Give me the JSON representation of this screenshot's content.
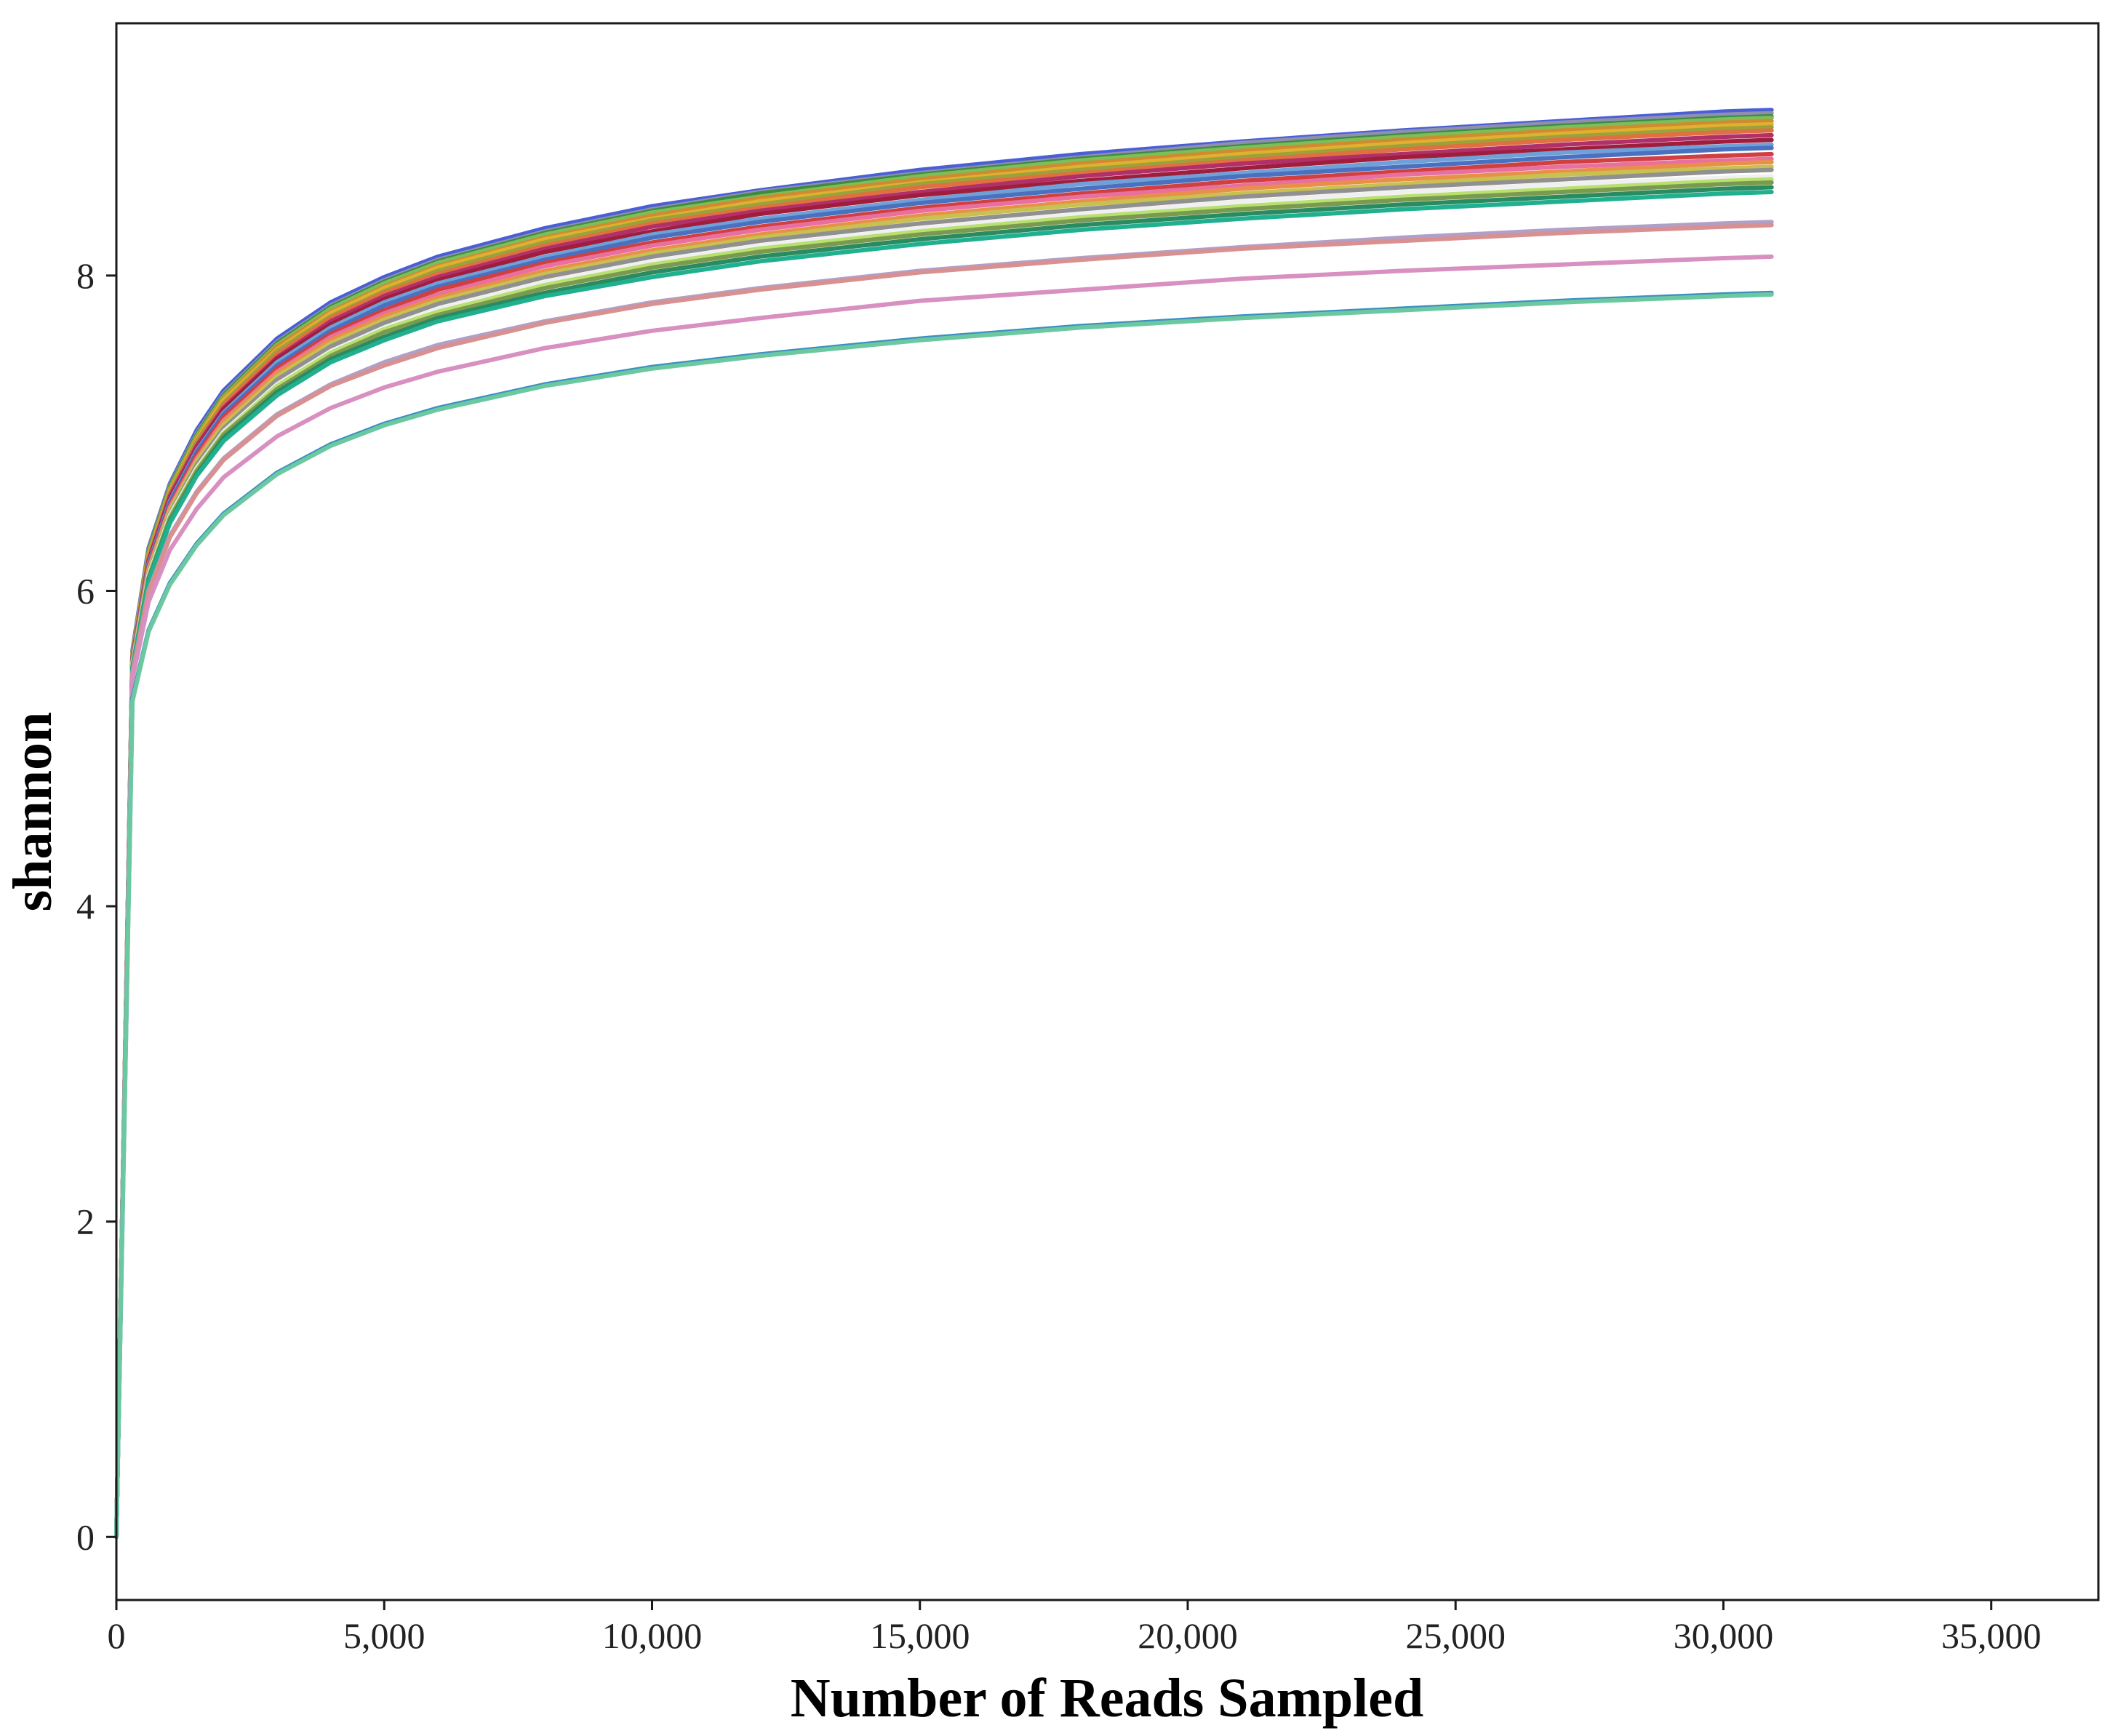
{
  "chart_data": {
    "type": "line",
    "title": "",
    "xlabel": "Number of Reads Sampled",
    "ylabel": "shannon",
    "xlim": [
      0,
      37000
    ],
    "ylim": [
      -0.4,
      9.6
    ],
    "x_ticks": [
      0,
      5000,
      10000,
      15000,
      20000,
      25000,
      30000,
      35000
    ],
    "x_tick_labels": [
      "0",
      "5,000",
      "10,000",
      "15,000",
      "20,000",
      "25,000",
      "30,000",
      "35,000"
    ],
    "y_ticks": [
      0,
      2,
      4,
      6,
      8
    ],
    "y_tick_labels": [
      "0",
      "2",
      "4",
      "6",
      "8"
    ],
    "grid": false,
    "legend": "none",
    "x": [
      0,
      300,
      600,
      1000,
      1500,
      2000,
      3000,
      4000,
      5000,
      6000,
      8000,
      10000,
      12000,
      15000,
      18000,
      21000,
      24000,
      27000,
      30000,
      30900
    ],
    "series": [
      {
        "color": "#4a5fd6",
        "values": [
          0,
          5.62,
          6.27,
          6.68,
          7.02,
          7.27,
          7.6,
          7.83,
          7.99,
          8.12,
          8.3,
          8.44,
          8.54,
          8.67,
          8.77,
          8.85,
          8.92,
          8.98,
          9.04,
          9.05
        ]
      },
      {
        "color": "#8f8fb0",
        "values": [
          0,
          5.61,
          6.26,
          6.67,
          7.0,
          7.25,
          7.58,
          7.81,
          7.97,
          8.1,
          8.28,
          8.42,
          8.53,
          8.65,
          8.75,
          8.84,
          8.91,
          8.97,
          9.02,
          9.03
        ]
      },
      {
        "color": "#3c8c3c",
        "values": [
          0,
          5.6,
          6.25,
          6.66,
          6.99,
          7.24,
          7.57,
          7.8,
          7.96,
          8.09,
          8.27,
          8.41,
          8.52,
          8.64,
          8.74,
          8.82,
          8.89,
          8.95,
          9.0,
          9.01
        ]
      },
      {
        "color": "#7dbd5a",
        "values": [
          0,
          5.6,
          6.24,
          6.65,
          6.98,
          7.23,
          7.56,
          7.79,
          7.95,
          8.08,
          8.26,
          8.4,
          8.5,
          8.63,
          8.73,
          8.81,
          8.88,
          8.94,
          8.99,
          9.0
        ]
      },
      {
        "color": "#d08a30",
        "values": [
          0,
          5.59,
          6.23,
          6.64,
          6.97,
          7.22,
          7.55,
          7.77,
          7.93,
          8.06,
          8.24,
          8.38,
          8.49,
          8.61,
          8.71,
          8.79,
          8.86,
          8.92,
          8.97,
          8.98
        ]
      },
      {
        "color": "#e0b030",
        "values": [
          0,
          5.59,
          6.22,
          6.63,
          6.96,
          7.21,
          7.53,
          7.76,
          7.92,
          8.05,
          8.23,
          8.36,
          8.47,
          8.59,
          8.69,
          8.77,
          8.84,
          8.9,
          8.95,
          8.96
        ]
      },
      {
        "color": "#9aa23c",
        "values": [
          0,
          5.58,
          6.21,
          6.62,
          6.95,
          7.19,
          7.52,
          7.74,
          7.9,
          8.03,
          8.21,
          8.35,
          8.45,
          8.58,
          8.67,
          8.75,
          8.82,
          8.88,
          8.93,
          8.94
        ]
      },
      {
        "color": "#e07040",
        "values": [
          0,
          5.58,
          6.2,
          6.61,
          6.93,
          7.18,
          7.5,
          7.73,
          7.89,
          8.01,
          8.19,
          8.33,
          8.43,
          8.56,
          8.65,
          8.73,
          8.8,
          8.86,
          8.91,
          8.92
        ]
      },
      {
        "color": "#b0306a",
        "values": [
          0,
          5.57,
          6.19,
          6.6,
          6.92,
          7.16,
          7.48,
          7.71,
          7.87,
          7.99,
          8.17,
          8.31,
          8.41,
          8.53,
          8.63,
          8.71,
          8.77,
          8.83,
          8.88,
          8.89
        ]
      },
      {
        "color": "#a01e3c",
        "values": [
          0,
          5.57,
          6.18,
          6.58,
          6.9,
          7.15,
          7.47,
          7.69,
          7.85,
          7.97,
          8.15,
          8.28,
          8.39,
          8.51,
          8.6,
          8.68,
          8.75,
          8.8,
          8.85,
          8.86
        ]
      },
      {
        "color": "#6fa0d8",
        "values": [
          0,
          5.56,
          6.17,
          6.57,
          6.89,
          7.13,
          7.45,
          7.67,
          7.83,
          7.95,
          8.12,
          8.26,
          8.36,
          8.48,
          8.58,
          8.65,
          8.72,
          8.78,
          8.82,
          8.83
        ]
      },
      {
        "color": "#4a70c0",
        "values": [
          0,
          5.56,
          6.16,
          6.56,
          6.88,
          7.12,
          7.43,
          7.65,
          7.81,
          7.93,
          8.1,
          8.24,
          8.34,
          8.46,
          8.55,
          8.63,
          8.69,
          8.75,
          8.8,
          8.81
        ]
      },
      {
        "color": "#d04040",
        "values": [
          0,
          5.55,
          6.15,
          6.54,
          6.86,
          7.1,
          7.41,
          7.63,
          7.78,
          7.91,
          8.08,
          8.21,
          8.31,
          8.43,
          8.52,
          8.6,
          8.66,
          8.72,
          8.76,
          8.77
        ]
      },
      {
        "color": "#e870a0",
        "values": [
          0,
          5.55,
          6.14,
          6.53,
          6.84,
          7.08,
          7.39,
          7.61,
          7.76,
          7.88,
          8.06,
          8.19,
          8.29,
          8.41,
          8.5,
          8.57,
          8.64,
          8.69,
          8.73,
          8.74
        ]
      },
      {
        "color": "#e8904a",
        "values": [
          0,
          5.54,
          6.13,
          6.52,
          6.83,
          7.07,
          7.38,
          7.59,
          7.74,
          7.86,
          8.03,
          8.16,
          8.26,
          8.38,
          8.47,
          8.55,
          8.61,
          8.66,
          8.71,
          8.72
        ]
      },
      {
        "color": "#c8c050",
        "values": [
          0,
          5.54,
          6.12,
          6.51,
          6.82,
          7.05,
          7.36,
          7.57,
          7.72,
          7.84,
          8.01,
          8.14,
          8.24,
          8.36,
          8.45,
          8.52,
          8.58,
          8.64,
          8.68,
          8.69
        ]
      },
      {
        "color": "#909090",
        "values": [
          0,
          5.53,
          6.11,
          6.49,
          6.8,
          7.03,
          7.34,
          7.55,
          7.7,
          7.82,
          7.99,
          8.12,
          8.22,
          8.33,
          8.42,
          8.5,
          8.56,
          8.61,
          8.66,
          8.67
        ]
      },
      {
        "color": "#f0f0f0",
        "values": [
          0,
          5.53,
          6.1,
          6.48,
          6.78,
          7.01,
          7.31,
          7.52,
          7.67,
          7.79,
          7.96,
          8.09,
          8.19,
          8.3,
          8.39,
          8.47,
          8.53,
          8.58,
          8.62,
          8.63
        ]
      },
      {
        "color": "#b8e070",
        "values": [
          0,
          5.52,
          6.09,
          6.47,
          6.77,
          7.0,
          7.3,
          7.51,
          7.66,
          7.77,
          7.94,
          8.07,
          8.17,
          8.28,
          8.37,
          8.44,
          8.5,
          8.55,
          8.6,
          8.61
        ]
      },
      {
        "color": "#7a9a50",
        "values": [
          0,
          5.52,
          6.08,
          6.46,
          6.76,
          6.99,
          7.28,
          7.49,
          7.64,
          7.75,
          7.92,
          8.05,
          8.15,
          8.26,
          8.35,
          8.42,
          8.48,
          8.53,
          8.58,
          8.59
        ]
      },
      {
        "color": "#2a8a60",
        "values": [
          0,
          5.51,
          6.07,
          6.44,
          6.74,
          6.97,
          7.26,
          7.47,
          7.61,
          7.73,
          7.89,
          8.02,
          8.12,
          8.23,
          8.32,
          8.39,
          8.45,
          8.5,
          8.55,
          8.56
        ]
      },
      {
        "color": "#20b090",
        "values": [
          0,
          5.51,
          6.06,
          6.43,
          6.73,
          6.95,
          7.24,
          7.45,
          7.59,
          7.71,
          7.87,
          7.99,
          8.09,
          8.2,
          8.29,
          8.36,
          8.42,
          8.47,
          8.52,
          8.53
        ]
      },
      {
        "color": "#b0a0c8",
        "values": [
          0,
          5.48,
          6.0,
          6.35,
          6.63,
          6.84,
          7.12,
          7.31,
          7.45,
          7.56,
          7.71,
          7.83,
          7.92,
          8.03,
          8.11,
          8.18,
          8.24,
          8.29,
          8.33,
          8.34
        ]
      },
      {
        "color": "#d89090",
        "values": [
          0,
          5.47,
          5.99,
          6.34,
          6.62,
          6.83,
          7.11,
          7.3,
          7.43,
          7.54,
          7.7,
          7.82,
          7.91,
          8.02,
          8.1,
          8.17,
          8.22,
          8.27,
          8.31,
          8.32
        ]
      },
      {
        "color": "#d890c0",
        "values": [
          0,
          5.44,
          5.93,
          6.26,
          6.52,
          6.72,
          6.98,
          7.16,
          7.29,
          7.39,
          7.54,
          7.65,
          7.73,
          7.84,
          7.91,
          7.98,
          8.03,
          8.07,
          8.11,
          8.12
        ]
      },
      {
        "color": "#3a8fc0",
        "values": [
          0,
          5.32,
          5.75,
          6.05,
          6.3,
          6.49,
          6.75,
          6.93,
          7.06,
          7.16,
          7.31,
          7.42,
          7.5,
          7.6,
          7.68,
          7.74,
          7.79,
          7.84,
          7.88,
          7.89
        ]
      },
      {
        "color": "#6cc8a0",
        "values": [
          0,
          5.3,
          5.74,
          6.04,
          6.29,
          6.48,
          6.74,
          6.92,
          7.05,
          7.15,
          7.3,
          7.41,
          7.49,
          7.59,
          7.67,
          7.73,
          7.78,
          7.83,
          7.87,
          7.88
        ]
      }
    ]
  }
}
